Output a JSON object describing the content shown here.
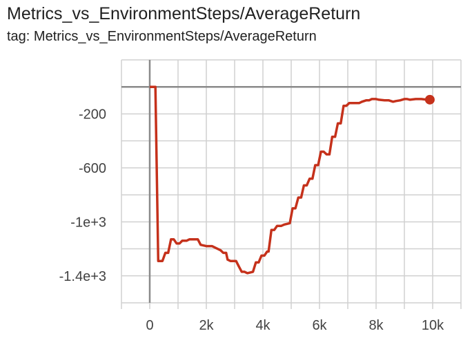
{
  "chart_data": {
    "type": "line",
    "title": "Metrics_vs_EnvironmentSteps/AverageReturn",
    "subtitle": "tag: Metrics_vs_EnvironmentSteps/AverageReturn",
    "xlabel": "",
    "ylabel": "",
    "xlim": [
      -1000,
      11000
    ],
    "ylim": [
      -1600,
      200
    ],
    "grid": true,
    "x_ticks": [
      {
        "value": 0,
        "label": "0"
      },
      {
        "value": 2000,
        "label": "2k"
      },
      {
        "value": 4000,
        "label": "4k"
      },
      {
        "value": 6000,
        "label": "6k"
      },
      {
        "value": 8000,
        "label": "8k"
      },
      {
        "value": 10000,
        "label": "10k"
      }
    ],
    "y_ticks": [
      {
        "value": -200,
        "label": "-200"
      },
      {
        "value": -600,
        "label": "-600"
      },
      {
        "value": -1000,
        "label": "-1e+3"
      },
      {
        "value": -1400,
        "label": "-1.4e+3"
      }
    ],
    "series": [
      {
        "color": "#c5311b",
        "points": [
          [
            0,
            0
          ],
          [
            200,
            0
          ],
          [
            300,
            -1290
          ],
          [
            450,
            -1290
          ],
          [
            550,
            -1230
          ],
          [
            650,
            -1230
          ],
          [
            750,
            -1130
          ],
          [
            850,
            -1130
          ],
          [
            950,
            -1160
          ],
          [
            1050,
            -1160
          ],
          [
            1150,
            -1140
          ],
          [
            1300,
            -1140
          ],
          [
            1400,
            -1130
          ],
          [
            1700,
            -1130
          ],
          [
            1800,
            -1170
          ],
          [
            2000,
            -1180
          ],
          [
            2200,
            -1180
          ],
          [
            2400,
            -1200
          ],
          [
            2500,
            -1210
          ],
          [
            2600,
            -1230
          ],
          [
            2700,
            -1230
          ],
          [
            2750,
            -1280
          ],
          [
            2850,
            -1290
          ],
          [
            3050,
            -1290
          ],
          [
            3150,
            -1330
          ],
          [
            3250,
            -1370
          ],
          [
            3350,
            -1370
          ],
          [
            3450,
            -1380
          ],
          [
            3650,
            -1370
          ],
          [
            3750,
            -1300
          ],
          [
            3850,
            -1300
          ],
          [
            3950,
            -1250
          ],
          [
            4050,
            -1250
          ],
          [
            4150,
            -1220
          ],
          [
            4200,
            -1220
          ],
          [
            4300,
            -1060
          ],
          [
            4400,
            -1060
          ],
          [
            4500,
            -1030
          ],
          [
            4650,
            -1030
          ],
          [
            4750,
            -1020
          ],
          [
            4950,
            -1010
          ],
          [
            5050,
            -900
          ],
          [
            5150,
            -900
          ],
          [
            5250,
            -820
          ],
          [
            5350,
            -820
          ],
          [
            5450,
            -730
          ],
          [
            5550,
            -730
          ],
          [
            5650,
            -680
          ],
          [
            5750,
            -680
          ],
          [
            5850,
            -580
          ],
          [
            5950,
            -580
          ],
          [
            6050,
            -480
          ],
          [
            6150,
            -480
          ],
          [
            6250,
            -500
          ],
          [
            6350,
            -500
          ],
          [
            6450,
            -370
          ],
          [
            6550,
            -370
          ],
          [
            6650,
            -270
          ],
          [
            6750,
            -270
          ],
          [
            6850,
            -140
          ],
          [
            6950,
            -140
          ],
          [
            7050,
            -120
          ],
          [
            7400,
            -120
          ],
          [
            7500,
            -110
          ],
          [
            7650,
            -100
          ],
          [
            7750,
            -100
          ],
          [
            7850,
            -90
          ],
          [
            8000,
            -90
          ],
          [
            8100,
            -95
          ],
          [
            8300,
            -100
          ],
          [
            8450,
            -100
          ],
          [
            8600,
            -110
          ],
          [
            8700,
            -105
          ],
          [
            8850,
            -100
          ],
          [
            9000,
            -90
          ],
          [
            9100,
            -90
          ],
          [
            9200,
            -95
          ],
          [
            9400,
            -90
          ],
          [
            9600,
            -90
          ],
          [
            9800,
            -95
          ],
          [
            9900,
            -95
          ]
        ]
      }
    ]
  }
}
